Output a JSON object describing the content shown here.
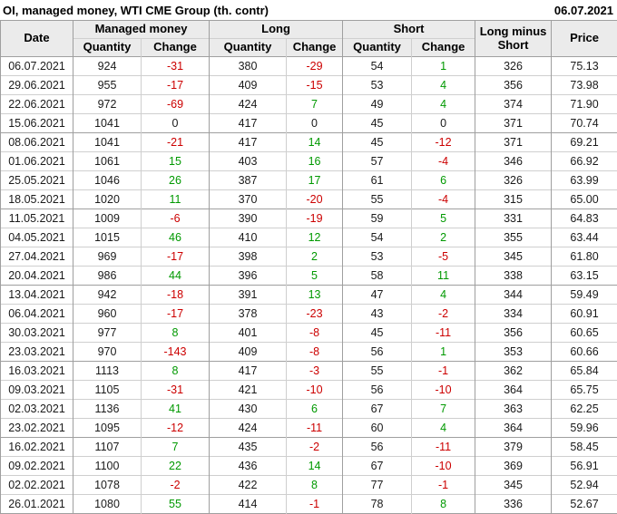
{
  "header": {
    "title": "OI, managed money, WTI CME Group (th. contr)",
    "report_date": "06.07.2021"
  },
  "table": {
    "headers": {
      "date": "Date",
      "managed_money": "Managed money",
      "long": "Long",
      "short": "Short",
      "long_minus_short": "Long minus Short",
      "price": "Price",
      "quantity": "Quantity",
      "change": "Change"
    },
    "rows": [
      {
        "date": "06.07.2021",
        "managed_quantity": 924,
        "managed_change": -31,
        "long_quantity": 380,
        "long_change": -29,
        "short_quantity": 54,
        "short_change": 1,
        "long_minus_short": 326,
        "price": "75.13"
      },
      {
        "date": "29.06.2021",
        "managed_quantity": 955,
        "managed_change": -17,
        "long_quantity": 409,
        "long_change": -15,
        "short_quantity": 53,
        "short_change": 4,
        "long_minus_short": 356,
        "price": "73.98"
      },
      {
        "date": "22.06.2021",
        "managed_quantity": 972,
        "managed_change": -69,
        "long_quantity": 424,
        "long_change": 7,
        "short_quantity": 49,
        "short_change": 4,
        "long_minus_short": 374,
        "price": "71.90"
      },
      {
        "date": "15.06.2021",
        "managed_quantity": 1041,
        "managed_change": 0,
        "long_quantity": 417,
        "long_change": 0,
        "short_quantity": 45,
        "short_change": 0,
        "long_minus_short": 371,
        "price": "70.74"
      },
      {
        "date": "08.06.2021",
        "managed_quantity": 1041,
        "managed_change": -21,
        "long_quantity": 417,
        "long_change": 14,
        "short_quantity": 45,
        "short_change": -12,
        "long_minus_short": 371,
        "price": "69.21"
      },
      {
        "date": "01.06.2021",
        "managed_quantity": 1061,
        "managed_change": 15,
        "long_quantity": 403,
        "long_change": 16,
        "short_quantity": 57,
        "short_change": -4,
        "long_minus_short": 346,
        "price": "66.92"
      },
      {
        "date": "25.05.2021",
        "managed_quantity": 1046,
        "managed_change": 26,
        "long_quantity": 387,
        "long_change": 17,
        "short_quantity": 61,
        "short_change": 6,
        "long_minus_short": 326,
        "price": "63.99"
      },
      {
        "date": "18.05.2021",
        "managed_quantity": 1020,
        "managed_change": 11,
        "long_quantity": 370,
        "long_change": -20,
        "short_quantity": 55,
        "short_change": -4,
        "long_minus_short": 315,
        "price": "65.00"
      },
      {
        "date": "11.05.2021",
        "managed_quantity": 1009,
        "managed_change": -6,
        "long_quantity": 390,
        "long_change": -19,
        "short_quantity": 59,
        "short_change": 5,
        "long_minus_short": 331,
        "price": "64.83"
      },
      {
        "date": "04.05.2021",
        "managed_quantity": 1015,
        "managed_change": 46,
        "long_quantity": 410,
        "long_change": 12,
        "short_quantity": 54,
        "short_change": 2,
        "long_minus_short": 355,
        "price": "63.44"
      },
      {
        "date": "27.04.2021",
        "managed_quantity": 969,
        "managed_change": -17,
        "long_quantity": 398,
        "long_change": 2,
        "short_quantity": 53,
        "short_change": -5,
        "long_minus_short": 345,
        "price": "61.80"
      },
      {
        "date": "20.04.2021",
        "managed_quantity": 986,
        "managed_change": 44,
        "long_quantity": 396,
        "long_change": 5,
        "short_quantity": 58,
        "short_change": 11,
        "long_minus_short": 338,
        "price": "63.15"
      },
      {
        "date": "13.04.2021",
        "managed_quantity": 942,
        "managed_change": -18,
        "long_quantity": 391,
        "long_change": 13,
        "short_quantity": 47,
        "short_change": 4,
        "long_minus_short": 344,
        "price": "59.49"
      },
      {
        "date": "06.04.2021",
        "managed_quantity": 960,
        "managed_change": -17,
        "long_quantity": 378,
        "long_change": -23,
        "short_quantity": 43,
        "short_change": -2,
        "long_minus_short": 334,
        "price": "60.91"
      },
      {
        "date": "30.03.2021",
        "managed_quantity": 977,
        "managed_change": 8,
        "long_quantity": 401,
        "long_change": -8,
        "short_quantity": 45,
        "short_change": -11,
        "long_minus_short": 356,
        "price": "60.65"
      },
      {
        "date": "23.03.2021",
        "managed_quantity": 970,
        "managed_change": -143,
        "long_quantity": 409,
        "long_change": -8,
        "short_quantity": 56,
        "short_change": 1,
        "long_minus_short": 353,
        "price": "60.66"
      },
      {
        "date": "16.03.2021",
        "managed_quantity": 1113,
        "managed_change": 8,
        "long_quantity": 417,
        "long_change": -3,
        "short_quantity": 55,
        "short_change": -1,
        "long_minus_short": 362,
        "price": "65.84"
      },
      {
        "date": "09.03.2021",
        "managed_quantity": 1105,
        "managed_change": -31,
        "long_quantity": 421,
        "long_change": -10,
        "short_quantity": 56,
        "short_change": -10,
        "long_minus_short": 364,
        "price": "65.75"
      },
      {
        "date": "02.03.2021",
        "managed_quantity": 1136,
        "managed_change": 41,
        "long_quantity": 430,
        "long_change": 6,
        "short_quantity": 67,
        "short_change": 7,
        "long_minus_short": 363,
        "price": "62.25"
      },
      {
        "date": "23.02.2021",
        "managed_quantity": 1095,
        "managed_change": -12,
        "long_quantity": 424,
        "long_change": -11,
        "short_quantity": 60,
        "short_change": 4,
        "long_minus_short": 364,
        "price": "59.96"
      },
      {
        "date": "16.02.2021",
        "managed_quantity": 1107,
        "managed_change": 7,
        "long_quantity": 435,
        "long_change": -2,
        "short_quantity": 56,
        "short_change": -11,
        "long_minus_short": 379,
        "price": "58.45"
      },
      {
        "date": "09.02.2021",
        "managed_quantity": 1100,
        "managed_change": 22,
        "long_quantity": 436,
        "long_change": 14,
        "short_quantity": 67,
        "short_change": -10,
        "long_minus_short": 369,
        "price": "56.91"
      },
      {
        "date": "02.02.2021",
        "managed_quantity": 1078,
        "managed_change": -2,
        "long_quantity": 422,
        "long_change": 8,
        "short_quantity": 77,
        "short_change": -1,
        "long_minus_short": 345,
        "price": "52.94"
      },
      {
        "date": "26.01.2021",
        "managed_quantity": 1080,
        "managed_change": 55,
        "long_quantity": 414,
        "long_change": -1,
        "short_quantity": 78,
        "short_change": 8,
        "long_minus_short": 336,
        "price": "52.67"
      }
    ]
  },
  "colors": {
    "positive_change": "#009900",
    "negative_change": "#cc0000",
    "header_bg": "#ebebeb",
    "border_light": "#cfcfcf",
    "border_dark": "#9f9f9f",
    "text": "#1a1a1a"
  }
}
